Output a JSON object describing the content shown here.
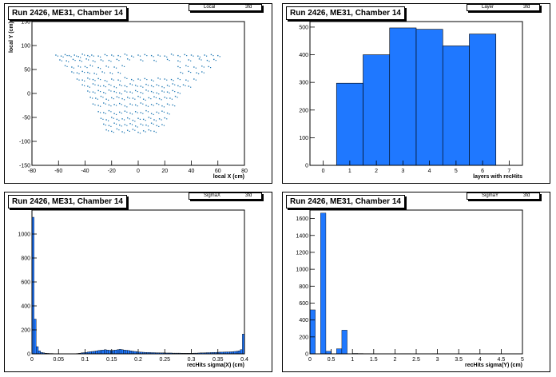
{
  "panels": [
    {
      "title": "Run 2426, ME31, Chamber 14",
      "stats": {
        "name": "Local",
        "value": "3fd"
      },
      "chart_data": {
        "type": "scatter",
        "title": "Run 2426, ME31, Chamber 14",
        "xlabel": "local X (cm)",
        "ylabel": "local Y (cm)",
        "xlim": [
          -80,
          80
        ],
        "ylim": [
          -150,
          150
        ],
        "xticks": [
          -80,
          -60,
          -40,
          -20,
          0,
          20,
          40,
          60,
          80
        ],
        "yticks": [
          -150,
          -100,
          -50,
          0,
          50,
          100,
          150
        ],
        "color": "#1f78b4",
        "x": [
          -62,
          -58,
          -55,
          -52,
          -48,
          -45,
          -42,
          -38,
          -35,
          -30,
          -25,
          -20,
          -15,
          -10,
          -5,
          0,
          5,
          10,
          15,
          20,
          25,
          30,
          35,
          40,
          45,
          50,
          55,
          60,
          -59,
          -54,
          -49,
          -44,
          -39,
          -34,
          -28,
          -22,
          -16,
          -8,
          2,
          12,
          22,
          30,
          38,
          46,
          52,
          57,
          -55,
          -50,
          -45,
          -40,
          -36,
          -30,
          -24,
          -18,
          -12,
          30,
          36,
          42,
          48,
          53,
          -50,
          -46,
          -42,
          -38,
          -33,
          -27,
          -21,
          -15,
          32,
          38,
          44,
          48,
          -46,
          -42,
          -38,
          -34,
          -30,
          -25,
          -20,
          -15,
          -10,
          -5,
          0,
          5,
          10,
          15,
          20,
          25,
          30,
          36,
          42,
          -42,
          -38,
          -34,
          -30,
          -26,
          -22,
          -18,
          -14,
          -10,
          -6,
          -2,
          2,
          6,
          10,
          14,
          18,
          22,
          26,
          30,
          34,
          38,
          -38,
          -34,
          -30,
          -26,
          -22,
          -18,
          -14,
          -10,
          -6,
          -2,
          2,
          6,
          10,
          14,
          18,
          22,
          26,
          30,
          -36,
          -32,
          -28,
          -24,
          -20,
          -16,
          -12,
          -8,
          -4,
          0,
          4,
          8,
          12,
          16,
          20,
          24,
          28,
          -34,
          -30,
          -26,
          -22,
          -18,
          -14,
          -10,
          -6,
          -2,
          2,
          6,
          10,
          14,
          18,
          22,
          26,
          -30,
          -26,
          -22,
          -18,
          -14,
          -10,
          -6,
          -2,
          2,
          6,
          10,
          14,
          18,
          22,
          -28,
          -24,
          -20,
          -16,
          -12,
          -8,
          -4,
          0,
          4,
          8,
          12,
          16,
          20,
          -26,
          -22,
          -18,
          -14,
          -10,
          -6,
          -2,
          2,
          6,
          10,
          14,
          18,
          -24,
          -20,
          -16,
          -12,
          -8,
          -4,
          0,
          4,
          8,
          12
        ],
        "y": [
          80,
          78,
          81,
          79,
          80,
          77,
          82,
          79,
          80,
          78,
          81,
          80,
          79,
          82,
          78,
          80,
          81,
          79,
          80,
          78,
          82,
          79,
          81,
          80,
          78,
          80,
          81,
          79,
          70,
          68,
          71,
          69,
          72,
          68,
          70,
          69,
          71,
          72,
          70,
          69,
          71,
          68,
          70,
          72,
          69,
          71,
          58,
          55,
          57,
          56,
          59,
          54,
          57,
          55,
          58,
          56,
          58,
          55,
          57,
          56,
          45,
          43,
          46,
          44,
          42,
          45,
          43,
          44,
          44,
          46,
          43,
          45,
          30,
          28,
          32,
          29,
          31,
          27,
          30,
          28,
          33,
          29,
          30,
          31,
          28,
          32,
          30,
          29,
          31,
          28,
          30,
          18,
          15,
          20,
          17,
          16,
          19,
          14,
          18,
          16,
          20,
          17,
          15,
          19,
          16,
          18,
          14,
          17,
          20,
          16,
          18,
          15,
          5,
          3,
          6,
          2,
          7,
          4,
          1,
          5,
          3,
          6,
          2,
          7,
          4,
          1,
          5,
          3,
          6,
          2,
          -8,
          -10,
          -6,
          -12,
          -9,
          -7,
          -11,
          -8,
          -10,
          -6,
          -12,
          -9,
          -7,
          -11,
          -8,
          -10,
          -6,
          -22,
          -25,
          -20,
          -24,
          -23,
          -21,
          -26,
          -22,
          -24,
          -20,
          -25,
          -23,
          -21,
          -26,
          -22,
          -24,
          -38,
          -40,
          -36,
          -42,
          -39,
          -37,
          -41,
          -38,
          -40,
          -36,
          -42,
          -39,
          -37,
          -41,
          -52,
          -55,
          -50,
          -54,
          -53,
          -51,
          -56,
          -52,
          -54,
          -50,
          -55,
          -53,
          -51,
          -64,
          -67,
          -62,
          -66,
          -65,
          -63,
          -68,
          -64,
          -66,
          -62,
          -67,
          -65,
          -76,
          -79,
          -74,
          -80,
          -77,
          -75,
          -81,
          -78,
          -76,
          -79
        ]
      }
    },
    {
      "title": "Run 2426, ME31, Chamber 14",
      "stats": {
        "name": "Layer",
        "value": "3fd"
      },
      "chart_data": {
        "type": "bar",
        "title": "Run 2426, ME31, Chamber 14",
        "xlabel": "layers with recHits",
        "ylabel": "",
        "xlim": [
          -0.5,
          7.5
        ],
        "ylim": [
          0,
          520
        ],
        "xticks": [
          0,
          1,
          2,
          3,
          4,
          5,
          6,
          7
        ],
        "yticks": [
          0,
          100,
          200,
          300,
          400,
          500
        ],
        "color": "#1f78ff",
        "bin_edges": [
          0.5,
          1.5,
          2.5,
          3.5,
          4.5,
          5.5,
          6.5
        ],
        "values": [
          297,
          400,
          497,
          492,
          432,
          475
        ]
      }
    },
    {
      "title": "Run 2426, ME31, Chamber 14",
      "stats": {
        "name": "SigmaX",
        "value": "3fd"
      },
      "chart_data": {
        "type": "bar",
        "title": "Run 2426, ME31, Chamber 14",
        "xlabel": "recHits sigma(X) (cm)",
        "ylabel": "",
        "xlim": [
          0,
          0.4
        ],
        "ylim": [
          0,
          1200
        ],
        "xticks": [
          0,
          0.05,
          0.1,
          0.15,
          0.2,
          0.25,
          0.3,
          0.35,
          0.4
        ],
        "xticklabels": [
          "0",
          "0.05",
          "0.1",
          "0.15",
          "0.2",
          "0.25",
          "0.3",
          "0.35",
          "0.4"
        ],
        "yticks": [
          0,
          200,
          400,
          600,
          800,
          1000
        ],
        "color": "#1f78ff",
        "bin_start": 0,
        "bin_width": 0.004,
        "values": [
          1140,
          290,
          60,
          25,
          12,
          8,
          5,
          4,
          3,
          3,
          2,
          2,
          2,
          1,
          1,
          1,
          1,
          1,
          1,
          1,
          2,
          3,
          5,
          8,
          10,
          12,
          15,
          18,
          20,
          22,
          25,
          28,
          30,
          32,
          35,
          32,
          30,
          28,
          30,
          32,
          35,
          38,
          35,
          32,
          30,
          28,
          25,
          22,
          20,
          18,
          15,
          14,
          13,
          12,
          12,
          11,
          10,
          10,
          9,
          9,
          8,
          8,
          8,
          7,
          7,
          7,
          6,
          6,
          6,
          6,
          5,
          5,
          5,
          5,
          5,
          5,
          6,
          6,
          7,
          8,
          8,
          9,
          10,
          10,
          11,
          12,
          12,
          13,
          14,
          14,
          15,
          16,
          16,
          17,
          18,
          20,
          22,
          25,
          35,
          165
        ]
      }
    },
    {
      "title": "Run 2426, ME31, Chamber 14",
      "stats": {
        "name": "SigmaY",
        "value": "3fd"
      },
      "chart_data": {
        "type": "bar",
        "title": "Run 2426, ME31, Chamber 14",
        "xlabel": "recHits sigma(Y) (cm)",
        "ylabel": "",
        "xlim": [
          0,
          5
        ],
        "ylim": [
          0,
          1700
        ],
        "xticks": [
          0,
          0.5,
          1,
          1.5,
          2,
          2.5,
          3,
          3.5,
          4,
          4.5,
          5
        ],
        "xticklabels": [
          "0",
          "0.5",
          "1",
          "1.5",
          "2",
          "2.5",
          "3",
          "3.5",
          "4",
          "4.5",
          "5"
        ],
        "yticks": [
          0,
          200,
          400,
          600,
          800,
          1000,
          1200,
          1400,
          1600
        ],
        "color": "#1f78ff",
        "bin_start": 0,
        "bin_width": 0.125,
        "values": [
          520,
          0,
          1665,
          30,
          0,
          60,
          280,
          0,
          5,
          4,
          3,
          3,
          2,
          2,
          2,
          2,
          2,
          3,
          3,
          2,
          2,
          2,
          2,
          3,
          2,
          2,
          2,
          2,
          2,
          2,
          2,
          2,
          2,
          2,
          3,
          2,
          2,
          2,
          2,
          2
        ]
      }
    }
  ]
}
